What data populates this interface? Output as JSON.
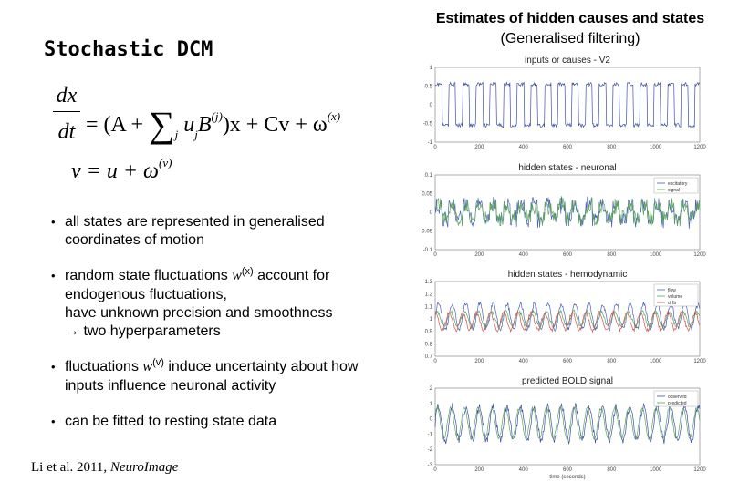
{
  "slide": {
    "title": "Stochastic DCM",
    "equation1": {
      "numerator": "dx",
      "denominator": "dt",
      "eq_sign": "=",
      "open": "(A +",
      "sum": "∑",
      "sum_sub": "j",
      "u": "u",
      "u_sub": "j",
      "b": "B",
      "b_sup": "(j)",
      "close": ")x + Cv + ω",
      "omega_sup": "(x)"
    },
    "equation2": {
      "lhs": "v = u + ω",
      "omega_sup": "(v)"
    },
    "bullets": [
      {
        "text": "all states are represented in generalised coordinates of motion"
      },
      {
        "pre": "random state fluctuations",
        "symbol": "w",
        "symbol_sup": "(x)",
        "post": "account for endogenous fluctuations,",
        "line2": "have unknown precision and smoothness",
        "line3": "→ two hyperparameters"
      },
      {
        "pre": "fluctuations",
        "symbol": "w",
        "symbol_sup": "(v)",
        "post": "induce uncertainty about how inputs influence neuronal activity"
      },
      {
        "text": "can be fitted to resting state data"
      }
    ],
    "citation": {
      "authors": "Li et al. 2011,",
      "journal": "NeuroImage"
    }
  },
  "right_heading": {
    "line1": "Estimates of hidden causes and states",
    "line2": "(Generalised filtering)"
  },
  "chart_data": [
    {
      "type": "line",
      "title": "inputs or causes - V2",
      "xlim": [
        0,
        1200
      ],
      "ylim": [
        -1,
        1
      ],
      "x_ticks": [
        "0",
        "200",
        "400",
        "600",
        "800",
        "1000",
        "1200"
      ],
      "y_ticks": [
        "1",
        "0.5",
        "0",
        "-0.5",
        "-1"
      ],
      "series": [
        {
          "name": "input",
          "color": "#3a4fa8",
          "shape": "square",
          "period": 62,
          "amplitude": 0.55,
          "offset": 0.0,
          "noise": 0.05
        }
      ]
    },
    {
      "type": "line",
      "title": "hidden states - neuronal",
      "xlim": [
        0,
        1200
      ],
      "ylim": [
        -0.1,
        0.1
      ],
      "x_ticks": [
        "0",
        "200",
        "400",
        "600",
        "800",
        "1000",
        "1200"
      ],
      "y_ticks": [
        "0.1",
        "0.05",
        "0",
        "-0.05",
        "-0.1"
      ],
      "legend": [
        "excitatory",
        "signal"
      ],
      "series": [
        {
          "name": "excitatory",
          "color": "#4a62b8",
          "shape": "noise",
          "period": 62,
          "amplitude": 0.025,
          "offset": 0.0,
          "noise": 0.02
        },
        {
          "name": "signal",
          "color": "#5aa35a",
          "shape": "noise",
          "period": 62,
          "amplitude": 0.02,
          "offset": 0.0,
          "noise": 0.02
        }
      ]
    },
    {
      "type": "line",
      "title": "hidden states - hemodynamic",
      "xlim": [
        0,
        1200
      ],
      "ylim": [
        0.7,
        1.3
      ],
      "x_ticks": [
        "0",
        "200",
        "400",
        "600",
        "800",
        "1000",
        "1200"
      ],
      "y_ticks": [
        "1.3",
        "1.2",
        "1.1",
        "1",
        "0.9",
        "0.8",
        "0.7"
      ],
      "legend": [
        "flow",
        "volume",
        "dHb"
      ],
      "series": [
        {
          "name": "flow",
          "color": "#4a62b8",
          "shape": "smooth",
          "period": 62,
          "amplitude": 0.1,
          "offset": 1.02,
          "noise": 0.02
        },
        {
          "name": "volume",
          "color": "#5aa35a",
          "shape": "smooth",
          "period": 62,
          "amplitude": 0.06,
          "offset": 1.0,
          "noise": 0.015
        },
        {
          "name": "dHb",
          "color": "#d05050",
          "shape": "smooth",
          "period": 62,
          "amplitude": 0.07,
          "offset": 0.98,
          "noise": 0.015
        }
      ]
    },
    {
      "type": "line",
      "title": "predicted BOLD signal",
      "xlim": [
        0,
        1200
      ],
      "ylim": [
        -3,
        2
      ],
      "x_ticks": [
        "0",
        "200",
        "400",
        "600",
        "800",
        "1000",
        "1200"
      ],
      "y_ticks": [
        "2",
        "1",
        "0",
        "-1",
        "-2",
        "-3"
      ],
      "xlabel": "time (seconds)",
      "legend": [
        "observed",
        "predicted"
      ],
      "series": [
        {
          "name": "observed",
          "color": "#3a4fa8",
          "shape": "smooth",
          "period": 62,
          "amplitude": 1.1,
          "offset": -0.3,
          "noise": 0.25
        },
        {
          "name": "predicted",
          "color": "#5aa35a",
          "shape": "smooth",
          "period": 62,
          "amplitude": 1.0,
          "offset": -0.3,
          "noise": 0.1
        }
      ]
    }
  ]
}
